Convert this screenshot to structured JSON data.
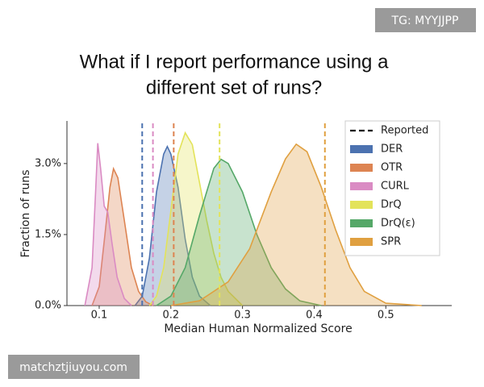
{
  "watermarks": {
    "top_right": "TG: MYYJJPP",
    "bottom_left": "matchztjiuyou.com"
  },
  "chart_data": {
    "type": "density",
    "title": [
      "What if I report performance using a",
      "different set of runs?"
    ],
    "x_label": "Median Human Normalized Score",
    "y_label": "Fraction of runs",
    "xlim": [
      0.055,
      0.592
    ],
    "ylim": [
      0,
      3.9
    ],
    "xticks": [
      0.1,
      0.2,
      0.3,
      0.4,
      0.5
    ],
    "yticks": [
      {
        "value": 0,
        "label": "0.0%"
      },
      {
        "value": 1.5,
        "label": "1.5%"
      },
      {
        "value": 3,
        "label": "3.0%"
      }
    ],
    "legend": "upper right",
    "reported_label": "Reported",
    "series": [
      {
        "name": "DER",
        "color": "#4c72b0",
        "reported": 0.16,
        "x": [
          0.15,
          0.16,
          0.17,
          0.18,
          0.19,
          0.195,
          0.2,
          0.21,
          0.22,
          0.23,
          0.24,
          0.255
        ],
        "values": [
          0,
          0.2,
          1.0,
          2.4,
          3.2,
          3.36,
          3.2,
          2.5,
          1.4,
          0.6,
          0.2,
          0
        ]
      },
      {
        "name": "OTR",
        "color": "#dd8452",
        "reported": 0.204,
        "x": [
          0.09,
          0.1,
          0.108,
          0.115,
          0.12,
          0.126,
          0.135,
          0.145,
          0.155,
          0.165,
          0.175
        ],
        "values": [
          0,
          0.4,
          1.5,
          2.5,
          2.89,
          2.7,
          1.8,
          0.8,
          0.3,
          0.08,
          0
        ]
      },
      {
        "name": "CURL",
        "color": "#da8bc3",
        "reported": 0.175,
        "x": [
          0.08,
          0.09,
          0.095,
          0.098,
          0.102,
          0.107,
          0.112,
          0.118,
          0.125,
          0.135,
          0.145
        ],
        "values": [
          0,
          0.8,
          2.4,
          3.43,
          2.9,
          2.1,
          1.97,
          1.3,
          0.6,
          0.15,
          0
        ]
      },
      {
        "name": "DrQ",
        "color": "#e3e35a",
        "reported": 0.268,
        "x": [
          0.17,
          0.18,
          0.19,
          0.2,
          0.21,
          0.22,
          0.23,
          0.24,
          0.25,
          0.26,
          0.27,
          0.28,
          0.3
        ],
        "values": [
          0,
          0.2,
          0.8,
          2.0,
          3.2,
          3.65,
          3.4,
          2.6,
          1.8,
          1.1,
          0.6,
          0.3,
          0
        ]
      },
      {
        "name": "DrQ(ε)",
        "color": "#55a868",
        "reported": null,
        "x": [
          0.18,
          0.2,
          0.22,
          0.24,
          0.26,
          0.27,
          0.28,
          0.3,
          0.32,
          0.34,
          0.36,
          0.38,
          0.41
        ],
        "values": [
          0,
          0.2,
          0.8,
          1.9,
          2.9,
          3.09,
          3.0,
          2.4,
          1.5,
          0.8,
          0.35,
          0.1,
          0
        ]
      },
      {
        "name": "SPR",
        "color": "#e0a040",
        "reported": 0.415,
        "x": [
          0.2,
          0.24,
          0.28,
          0.31,
          0.34,
          0.36,
          0.375,
          0.39,
          0.41,
          0.43,
          0.45,
          0.47,
          0.5,
          0.55
        ],
        "values": [
          0,
          0.1,
          0.5,
          1.2,
          2.4,
          3.1,
          3.41,
          3.25,
          2.5,
          1.6,
          0.8,
          0.3,
          0.05,
          0
        ]
      }
    ]
  }
}
